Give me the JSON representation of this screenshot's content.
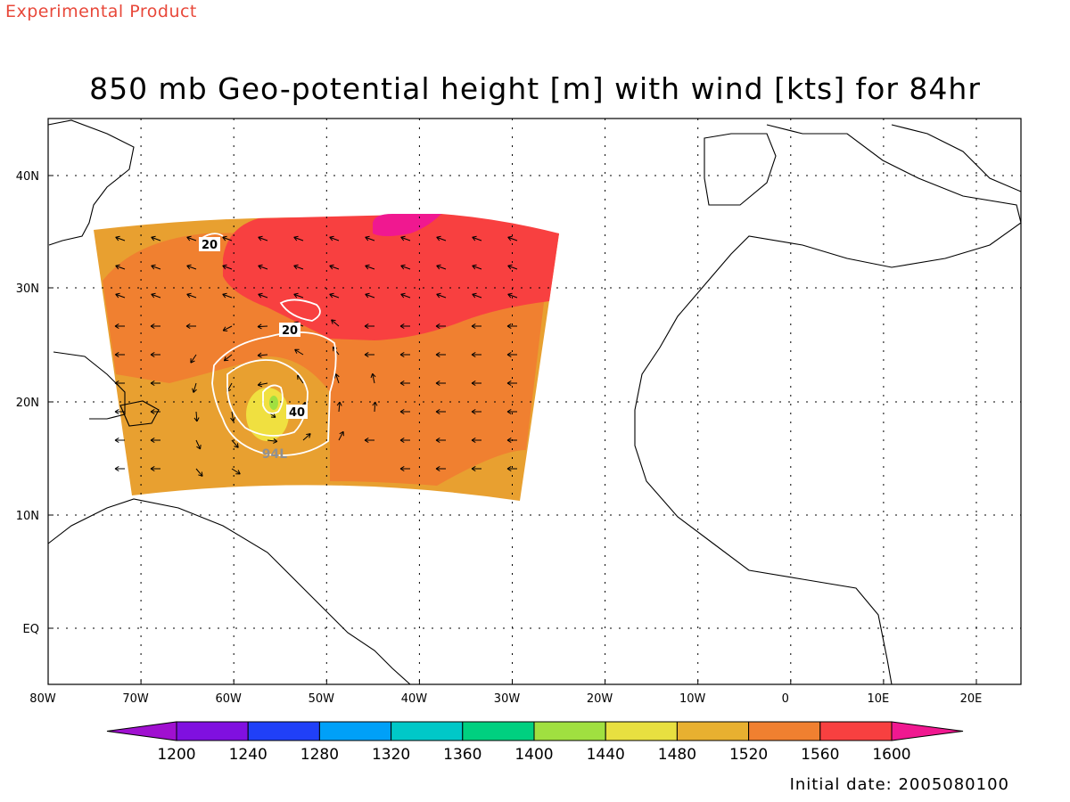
{
  "header": {
    "product_label": "Experimental Product",
    "title": "850 mb Geo-potential height [m] with wind [kts] for 84hr"
  },
  "map": {
    "lon_labels": [
      "80W",
      "70W",
      "60W",
      "50W",
      "40W",
      "30W",
      "20W",
      "10W",
      "0",
      "10E",
      "20E"
    ],
    "lat_labels": [
      "40N",
      "30N",
      "20N",
      "10N",
      "EQ"
    ],
    "contour_labels": [
      "20",
      "20",
      "40"
    ],
    "storm_label": "94L",
    "shading_colors": {
      "low": "#e8a030",
      "mid": "#f08030",
      "high": "#f84040",
      "peak": "#f01890",
      "core": "#f0e040",
      "center": "#a0e040"
    }
  },
  "colorbar": {
    "values": [
      "1200",
      "1240",
      "1280",
      "1320",
      "1360",
      "1400",
      "1440",
      "1480",
      "1520",
      "1560",
      "1600"
    ],
    "colors": [
      "#a010d0",
      "#8010e0",
      "#2040f8",
      "#00a0f8",
      "#00c8c8",
      "#00d080",
      "#a0e040",
      "#e8e040",
      "#e8b030",
      "#f08030",
      "#f84040",
      "#f01890"
    ]
  },
  "footer": {
    "initial_date": "Initial date: 2005080100"
  }
}
